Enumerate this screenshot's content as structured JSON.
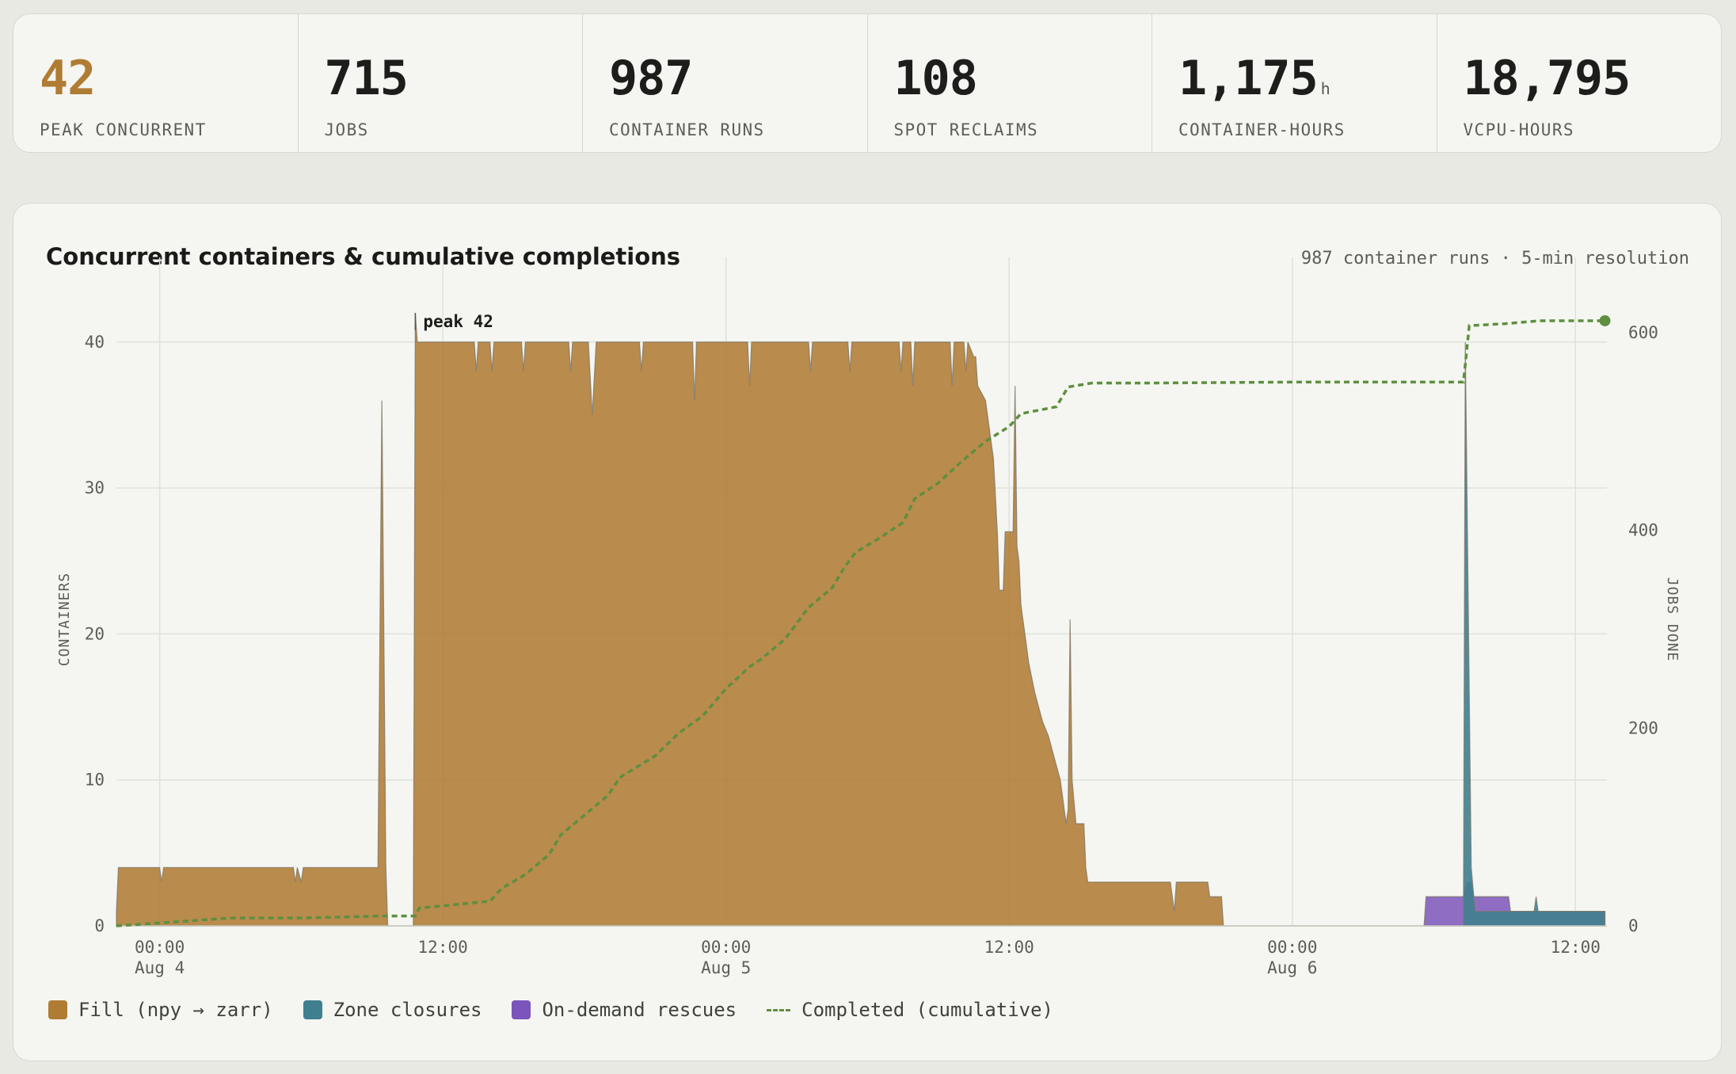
{
  "stats": [
    {
      "value": "42",
      "unit": "",
      "label": "PEAK CONCURRENT"
    },
    {
      "value": "715",
      "unit": "",
      "label": "JOBS"
    },
    {
      "value": "987",
      "unit": "",
      "label": "CONTAINER RUNS"
    },
    {
      "value": "108",
      "unit": "",
      "label": "SPOT RECLAIMS"
    },
    {
      "value": "1,175",
      "unit": "h",
      "label": "CONTAINER-HOURS"
    },
    {
      "value": "18,795",
      "unit": "",
      "label": "VCPU-HOURS"
    }
  ],
  "colors": {
    "accent": "#b07c34",
    "fill": "#b07c34",
    "zone": "#3f7f8f",
    "ondemand": "#7b55bb",
    "completed": "#5e8f3f"
  },
  "card": {
    "title": "Concurrent containers & cumulative completions",
    "meta": "987 container runs · 5-min resolution"
  },
  "legend": [
    {
      "label": "Fill (npy → zarr)",
      "color": "#b07c34",
      "kind": "swatch"
    },
    {
      "label": "Zone closures",
      "color": "#3f7f8f",
      "kind": "swatch"
    },
    {
      "label": "On-demand rescues",
      "color": "#7b55bb",
      "kind": "swatch"
    },
    {
      "label": "Completed (cumulative)",
      "color": "#5e8f3f",
      "kind": "dash"
    }
  ],
  "chart_data": {
    "type": "area",
    "title": "Concurrent containers & cumulative completions",
    "ylabel": "CONTAINERS",
    "y2label": "JOBS DONE",
    "ylim": [
      0,
      42
    ],
    "y2lim": [
      0,
      620
    ],
    "yticks": [
      0,
      10,
      20,
      30,
      40
    ],
    "y2ticks": [
      0,
      200,
      400,
      600
    ],
    "xlim": [
      "2025-08-03T22:10",
      "2025-08-06T13:20"
    ],
    "xticks": [
      {
        "t": "2025-08-04T00:00",
        "label": [
          "00:00",
          "Aug 4"
        ]
      },
      {
        "t": "2025-08-04T12:00",
        "label": [
          "12:00",
          ""
        ]
      },
      {
        "t": "2025-08-05T00:00",
        "label": [
          "00:00",
          "Aug 5"
        ]
      },
      {
        "t": "2025-08-05T12:00",
        "label": [
          "12:00",
          ""
        ]
      },
      {
        "t": "2025-08-06T00:00",
        "label": [
          "00:00",
          "Aug 6"
        ]
      },
      {
        "t": "2025-08-06T12:00",
        "label": [
          "12:00",
          ""
        ]
      }
    ],
    "annotation": {
      "label": "peak 42",
      "t": "2025-08-04T10:50",
      "y": 42
    },
    "series": [
      {
        "name": "Fill (npy → zarr)",
        "axis": "left",
        "points": [
          [
            "2025-08-03T22:10",
            1
          ],
          [
            "2025-08-03T22:15",
            4
          ],
          [
            "2025-08-04T00:00",
            4
          ],
          [
            "2025-08-04T00:05",
            3
          ],
          [
            "2025-08-04T00:10",
            4
          ],
          [
            "2025-08-04T05:40",
            4
          ],
          [
            "2025-08-04T05:45",
            3
          ],
          [
            "2025-08-04T05:50",
            4
          ],
          [
            "2025-08-04T06:00",
            3
          ],
          [
            "2025-08-04T06:05",
            4
          ],
          [
            "2025-08-04T09:15",
            4
          ],
          [
            "2025-08-04T09:25",
            36
          ],
          [
            "2025-08-04T09:35",
            4
          ],
          [
            "2025-08-04T09:40",
            0
          ],
          [
            "2025-08-04T10:45",
            0
          ],
          [
            "2025-08-04T10:50",
            42
          ],
          [
            "2025-08-04T10:55",
            40
          ],
          [
            "2025-08-04T13:20",
            40
          ],
          [
            "2025-08-04T13:25",
            38
          ],
          [
            "2025-08-04T13:30",
            40
          ],
          [
            "2025-08-04T14:00",
            40
          ],
          [
            "2025-08-04T14:05",
            38
          ],
          [
            "2025-08-04T14:10",
            40
          ],
          [
            "2025-08-04T15:20",
            40
          ],
          [
            "2025-08-04T15:25",
            38
          ],
          [
            "2025-08-04T15:30",
            40
          ],
          [
            "2025-08-04T17:20",
            40
          ],
          [
            "2025-08-04T17:25",
            38
          ],
          [
            "2025-08-04T17:30",
            40
          ],
          [
            "2025-08-04T18:10",
            40
          ],
          [
            "2025-08-04T18:20",
            35
          ],
          [
            "2025-08-04T18:30",
            40
          ],
          [
            "2025-08-04T20:20",
            40
          ],
          [
            "2025-08-04T20:25",
            38
          ],
          [
            "2025-08-04T20:30",
            40
          ],
          [
            "2025-08-04T22:35",
            40
          ],
          [
            "2025-08-04T22:40",
            36
          ],
          [
            "2025-08-04T22:45",
            40
          ],
          [
            "2025-08-05T00:55",
            40
          ],
          [
            "2025-08-05T01:00",
            37
          ],
          [
            "2025-08-05T01:05",
            40
          ],
          [
            "2025-08-05T03:30",
            40
          ],
          [
            "2025-08-05T03:35",
            38
          ],
          [
            "2025-08-05T03:40",
            40
          ],
          [
            "2025-08-05T05:10",
            40
          ],
          [
            "2025-08-05T05:15",
            38
          ],
          [
            "2025-08-05T05:20",
            40
          ],
          [
            "2025-08-05T07:20",
            40
          ],
          [
            "2025-08-05T07:25",
            38
          ],
          [
            "2025-08-05T07:30",
            40
          ],
          [
            "2025-08-05T07:50",
            40
          ],
          [
            "2025-08-05T07:55",
            37
          ],
          [
            "2025-08-05T08:00",
            40
          ],
          [
            "2025-08-05T09:30",
            40
          ],
          [
            "2025-08-05T09:35",
            37
          ],
          [
            "2025-08-05T09:40",
            40
          ],
          [
            "2025-08-05T10:05",
            40
          ],
          [
            "2025-08-05T10:10",
            38
          ],
          [
            "2025-08-05T10:15",
            40
          ],
          [
            "2025-08-05T10:30",
            39
          ],
          [
            "2025-08-05T10:35",
            39
          ],
          [
            "2025-08-05T10:40",
            37
          ],
          [
            "2025-08-05T11:00",
            36
          ],
          [
            "2025-08-05T11:20",
            32
          ],
          [
            "2025-08-05T11:30",
            27
          ],
          [
            "2025-08-05T11:35",
            23
          ],
          [
            "2025-08-05T11:45",
            23
          ],
          [
            "2025-08-05T11:50",
            27
          ],
          [
            "2025-08-05T12:10",
            27
          ],
          [
            "2025-08-05T12:15",
            37
          ],
          [
            "2025-08-05T12:20",
            26
          ],
          [
            "2025-08-05T12:25",
            25
          ],
          [
            "2025-08-05T12:30",
            22
          ],
          [
            "2025-08-05T12:40",
            20
          ],
          [
            "2025-08-05T12:50",
            18
          ],
          [
            "2025-08-05T13:05",
            16
          ],
          [
            "2025-08-05T13:25",
            14
          ],
          [
            "2025-08-05T13:40",
            13
          ],
          [
            "2025-08-05T13:50",
            12
          ],
          [
            "2025-08-05T14:00",
            11
          ],
          [
            "2025-08-05T14:10",
            10
          ],
          [
            "2025-08-05T14:15",
            9
          ],
          [
            "2025-08-05T14:25",
            7
          ],
          [
            "2025-08-05T14:30",
            8
          ],
          [
            "2025-08-05T14:35",
            21
          ],
          [
            "2025-08-05T14:40",
            10
          ],
          [
            "2025-08-05T14:50",
            7
          ],
          [
            "2025-08-05T15:10",
            7
          ],
          [
            "2025-08-05T15:15",
            4
          ],
          [
            "2025-08-05T15:20",
            3
          ],
          [
            "2025-08-05T18:50",
            3
          ],
          [
            "2025-08-05T19:00",
            1
          ],
          [
            "2025-08-05T19:05",
            3
          ],
          [
            "2025-08-05T20:25",
            3
          ],
          [
            "2025-08-05T20:30",
            2
          ],
          [
            "2025-08-05T21:00",
            2
          ],
          [
            "2025-08-05T21:05",
            0
          ],
          [
            "2025-08-06T13:15",
            0
          ]
        ]
      },
      {
        "name": "Zone closures",
        "axis": "left",
        "points": [
          [
            "2025-08-06T07:15",
            0
          ],
          [
            "2025-08-06T07:20",
            40
          ],
          [
            "2025-08-06T07:35",
            4
          ],
          [
            "2025-08-06T07:45",
            1
          ],
          [
            "2025-08-06T10:15",
            1
          ],
          [
            "2025-08-06T10:20",
            2
          ],
          [
            "2025-08-06T10:25",
            1
          ],
          [
            "2025-08-06T13:15",
            1
          ],
          [
            "2025-08-06T13:15",
            0
          ]
        ]
      },
      {
        "name": "On-demand rescues",
        "axis": "left",
        "points": [
          [
            "2025-08-06T05:35",
            0
          ],
          [
            "2025-08-06T05:40",
            2
          ],
          [
            "2025-08-06T07:15",
            2
          ],
          [
            "2025-08-06T07:25",
            3
          ],
          [
            "2025-08-06T07:35",
            3
          ],
          [
            "2025-08-06T07:40",
            2
          ],
          [
            "2025-08-06T09:10",
            2
          ],
          [
            "2025-08-06T09:15",
            1
          ],
          [
            "2025-08-06T13:15",
            1
          ],
          [
            "2025-08-06T13:15",
            0
          ]
        ]
      },
      {
        "name": "Completed (cumulative)",
        "axis": "right",
        "points": [
          [
            "2025-08-03T22:10",
            0
          ],
          [
            "2025-08-04T00:00",
            3
          ],
          [
            "2025-08-04T03:00",
            8
          ],
          [
            "2025-08-04T06:00",
            8
          ],
          [
            "2025-08-04T09:30",
            10
          ],
          [
            "2025-08-04T10:50",
            10
          ],
          [
            "2025-08-04T11:00",
            18
          ],
          [
            "2025-08-04T14:00",
            25
          ],
          [
            "2025-08-04T14:30",
            38
          ],
          [
            "2025-08-04T15:30",
            52
          ],
          [
            "2025-08-04T16:30",
            72
          ],
          [
            "2025-08-04T17:00",
            92
          ],
          [
            "2025-08-04T18:00",
            112
          ],
          [
            "2025-08-04T19:00",
            132
          ],
          [
            "2025-08-04T19:30",
            150
          ],
          [
            "2025-08-04T21:00",
            172
          ],
          [
            "2025-08-04T22:00",
            195
          ],
          [
            "2025-08-04T23:00",
            212
          ],
          [
            "2025-08-05T00:00",
            240
          ],
          [
            "2025-08-05T01:00",
            262
          ],
          [
            "2025-08-05T01:30",
            270
          ],
          [
            "2025-08-05T02:30",
            290
          ],
          [
            "2025-08-05T03:30",
            322
          ],
          [
            "2025-08-05T04:30",
            342
          ],
          [
            "2025-08-05T05:00",
            362
          ],
          [
            "2025-08-05T05:30",
            378
          ],
          [
            "2025-08-05T06:30",
            392
          ],
          [
            "2025-08-05T07:30",
            408
          ],
          [
            "2025-08-05T08:00",
            432
          ],
          [
            "2025-08-05T09:00",
            448
          ],
          [
            "2025-08-05T10:00",
            470
          ],
          [
            "2025-08-05T11:00",
            490
          ],
          [
            "2025-08-05T12:00",
            505
          ],
          [
            "2025-08-05T12:30",
            518
          ],
          [
            "2025-08-05T14:00",
            525
          ],
          [
            "2025-08-05T14:30",
            545
          ],
          [
            "2025-08-05T15:30",
            549
          ],
          [
            "2025-08-05T18:00",
            549
          ],
          [
            "2025-08-06T00:00",
            550
          ],
          [
            "2025-08-06T07:15",
            550
          ],
          [
            "2025-08-06T07:20",
            568
          ],
          [
            "2025-08-06T07:30",
            607
          ],
          [
            "2025-08-06T09:00",
            609
          ],
          [
            "2025-08-06T10:30",
            612
          ],
          [
            "2025-08-06T13:15",
            612
          ]
        ]
      }
    ]
  }
}
